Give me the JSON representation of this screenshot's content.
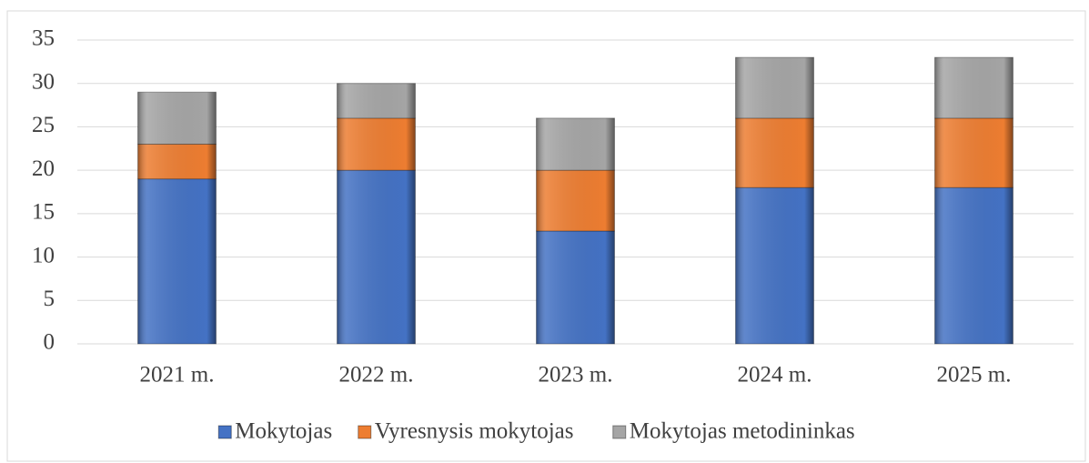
{
  "chart_data": {
    "type": "bar",
    "stacked": true,
    "categories": [
      "2021 m.",
      "2022 m.",
      "2023 m.",
      "2024 m.",
      "2025 m."
    ],
    "series": [
      {
        "name": "Mokytojas",
        "color": "#4472c4",
        "values": [
          19,
          20,
          13,
          18,
          18
        ]
      },
      {
        "name": "Vyresnysis mokytojas",
        "color": "#ed7d31",
        "values": [
          4,
          6,
          7,
          8,
          8
        ]
      },
      {
        "name": "Mokytojas metodininkas",
        "color": "#a5a5a5",
        "values": [
          6,
          4,
          6,
          7,
          7
        ]
      }
    ],
    "ylim": [
      0,
      35
    ],
    "yticks": [
      0,
      5,
      10,
      15,
      20,
      25,
      30,
      35
    ],
    "grid": true,
    "legend": "bottom"
  }
}
